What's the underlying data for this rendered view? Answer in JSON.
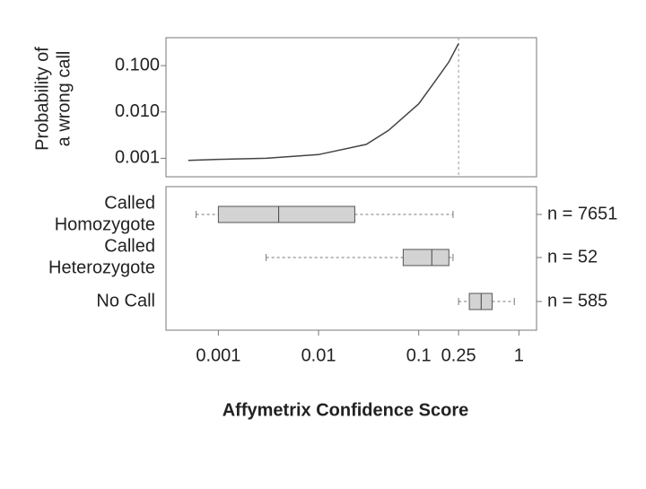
{
  "chart_data": [
    {
      "type": "line",
      "y_label": [
        "Probability of",
        "a wrong call"
      ],
      "log_x": true,
      "log_y": true,
      "xlim": [
        0.0003,
        1.5
      ],
      "ylim": [
        0.0004,
        0.4
      ],
      "yticks": [
        {
          "value": 0.1,
          "label": "0.100"
        },
        {
          "value": 0.01,
          "label": "0.010"
        },
        0.001
      ],
      "vline": 0.25,
      "series": [
        {
          "color": "#444444",
          "x": [
            0.0005,
            0.001,
            0.003,
            0.01,
            0.03,
            0.05,
            0.1,
            0.15,
            0.2,
            0.25
          ],
          "values": [
            0.0009,
            0.00095,
            0.001,
            0.0012,
            0.002,
            0.004,
            0.015,
            0.05,
            0.12,
            0.3
          ]
        }
      ]
    },
    {
      "type": "boxplot",
      "x_label": "Affymetrix Confidence Score",
      "log_x": true,
      "xlim": [
        0.0003,
        1.5
      ],
      "xticks": [
        0.001,
        0.01,
        0.1,
        0.25,
        1
      ],
      "categories": [
        [
          "Called",
          "Homozygote"
        ],
        [
          "Called",
          "Heterozygote"
        ],
        [
          "No Call"
        ]
      ],
      "annotations": [
        "n = 7651",
        "n = 52",
        "n = 585"
      ],
      "color": "#d3d3d3",
      "min": [
        0.0006,
        0.003,
        0.25
      ],
      "q1": [
        0.001,
        0.07,
        0.32
      ],
      "median": [
        0.004,
        0.135,
        0.42
      ],
      "q3": [
        0.023,
        0.2,
        0.54
      ],
      "max": [
        0.22,
        0.22,
        0.9
      ]
    }
  ]
}
